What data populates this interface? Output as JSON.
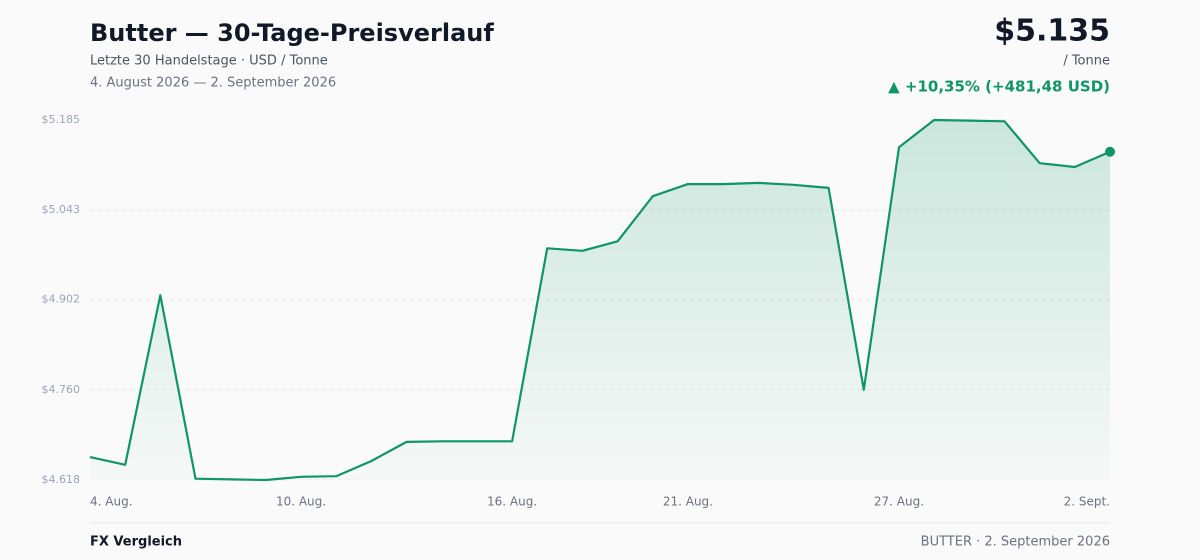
{
  "header": {
    "title": "Butter — 30-Tage-Preisverlauf",
    "subtitle": "Letzte 30 Handelstage · USD / Tonne",
    "range": "4. August 2026 — 2. September 2026",
    "price": "$5.135",
    "unit": "/ Tonne",
    "change": "▲ +10,35% (+481,48 USD)"
  },
  "chart_data": {
    "type": "line",
    "color": "#0f9668",
    "categories": [
      "4. Aug.",
      null,
      null,
      null,
      null,
      null,
      "10. Aug.",
      null,
      null,
      null,
      null,
      null,
      "16. Aug.",
      null,
      null,
      null,
      null,
      "21. Aug.",
      null,
      null,
      null,
      null,
      null,
      "27. Aug.",
      null,
      null,
      null,
      null,
      null,
      "2. Sept."
    ],
    "values": [
      4654,
      4642,
      4909,
      4620,
      4619,
      4618,
      4623,
      4624,
      4648,
      4678,
      4679,
      4679,
      4679,
      4983,
      4979,
      4994,
      5065,
      5084,
      5084,
      5086,
      5083,
      5078,
      4760,
      5142,
      5185,
      5184,
      5183,
      5117,
      5111,
      5135
    ],
    "ylim": [
      4618,
      5185
    ],
    "yticks": [
      {
        "value": 4618,
        "label": "$4.618"
      },
      {
        "value": 4760,
        "label": "$4.760"
      },
      {
        "value": 4902,
        "label": "$4.902"
      },
      {
        "value": 5043,
        "label": "$5.043"
      },
      {
        "value": 5185,
        "label": "$5.185"
      }
    ],
    "grid": true
  },
  "footer": {
    "left": "FX Vergleich",
    "right": "BUTTER · 2. September 2026"
  }
}
